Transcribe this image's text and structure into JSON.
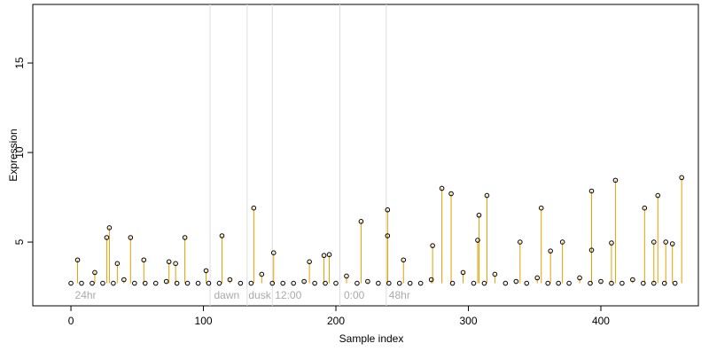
{
  "chart_data": {
    "type": "lollipop",
    "xlabel": "Sample index",
    "ylabel": "Expression",
    "xlim": [
      -28.8,
      473.6
    ],
    "ylim": [
      1.44,
      18.27
    ],
    "xticks": [
      0,
      100,
      200,
      300,
      400
    ],
    "yticks": [
      5,
      10,
      15
    ],
    "color": "#e69f00",
    "point_color": "#000000",
    "vline_color": "#dddddd",
    "vlines": [
      105,
      133,
      152,
      203,
      238
    ],
    "annotations": [
      {
        "text": "24hr",
        "x": 3
      },
      {
        "text": "dawn",
        "x": 108
      },
      {
        "text": "dusk",
        "x": 134
      },
      {
        "text": "12:00",
        "x": 154
      },
      {
        "text": "0:00",
        "x": 206
      },
      {
        "text": "48hr",
        "x": 240
      }
    ],
    "x": [
      0,
      5,
      8,
      16,
      18,
      24,
      27,
      29,
      32,
      35,
      40,
      45,
      48,
      55,
      56,
      64,
      72,
      74,
      79,
      80,
      86,
      88,
      96,
      102,
      104,
      112,
      114,
      120,
      128,
      136,
      138,
      144,
      152,
      153,
      160,
      168,
      176,
      180,
      184,
      191,
      192,
      195,
      200,
      208,
      216,
      219,
      224,
      232,
      239,
      239,
      240,
      248,
      251,
      256,
      264,
      272,
      273,
      280,
      287,
      288,
      296,
      304,
      307,
      308,
      312,
      314,
      320,
      328,
      336,
      339,
      344,
      352,
      355,
      360,
      362,
      368,
      371,
      376,
      384,
      392,
      393,
      393,
      400,
      408,
      408,
      411,
      416,
      424,
      432,
      433,
      440,
      440,
      443,
      448,
      449,
      454,
      456,
      461
    ],
    "values": [
      2.7,
      4.0,
      2.7,
      2.7,
      3.3,
      2.7,
      5.25,
      5.8,
      2.7,
      3.8,
      2.9,
      5.25,
      2.7,
      4.0,
      2.7,
      2.7,
      2.8,
      3.9,
      3.8,
      2.7,
      5.25,
      2.7,
      2.7,
      3.4,
      2.7,
      2.7,
      5.35,
      2.9,
      2.7,
      2.7,
      6.9,
      3.2,
      2.7,
      4.4,
      2.7,
      2.7,
      2.8,
      3.9,
      2.7,
      4.25,
      2.7,
      4.3,
      2.7,
      3.1,
      2.7,
      6.15,
      2.8,
      2.7,
      5.35,
      6.8,
      2.7,
      2.7,
      4.0,
      2.7,
      2.7,
      2.9,
      4.8,
      8.0,
      7.7,
      2.7,
      3.3,
      2.7,
      5.1,
      6.5,
      2.7,
      7.6,
      3.2,
      2.7,
      2.8,
      5.0,
      2.7,
      3.0,
      6.9,
      2.7,
      4.5,
      2.7,
      5.0,
      2.7,
      3.0,
      2.7,
      7.85,
      4.55,
      2.8,
      2.7,
      4.95,
      8.45,
      2.7,
      2.9,
      2.7,
      6.9,
      2.7,
      5.0,
      7.6,
      2.7,
      5.0,
      4.9,
      2.7,
      8.6
    ]
  }
}
